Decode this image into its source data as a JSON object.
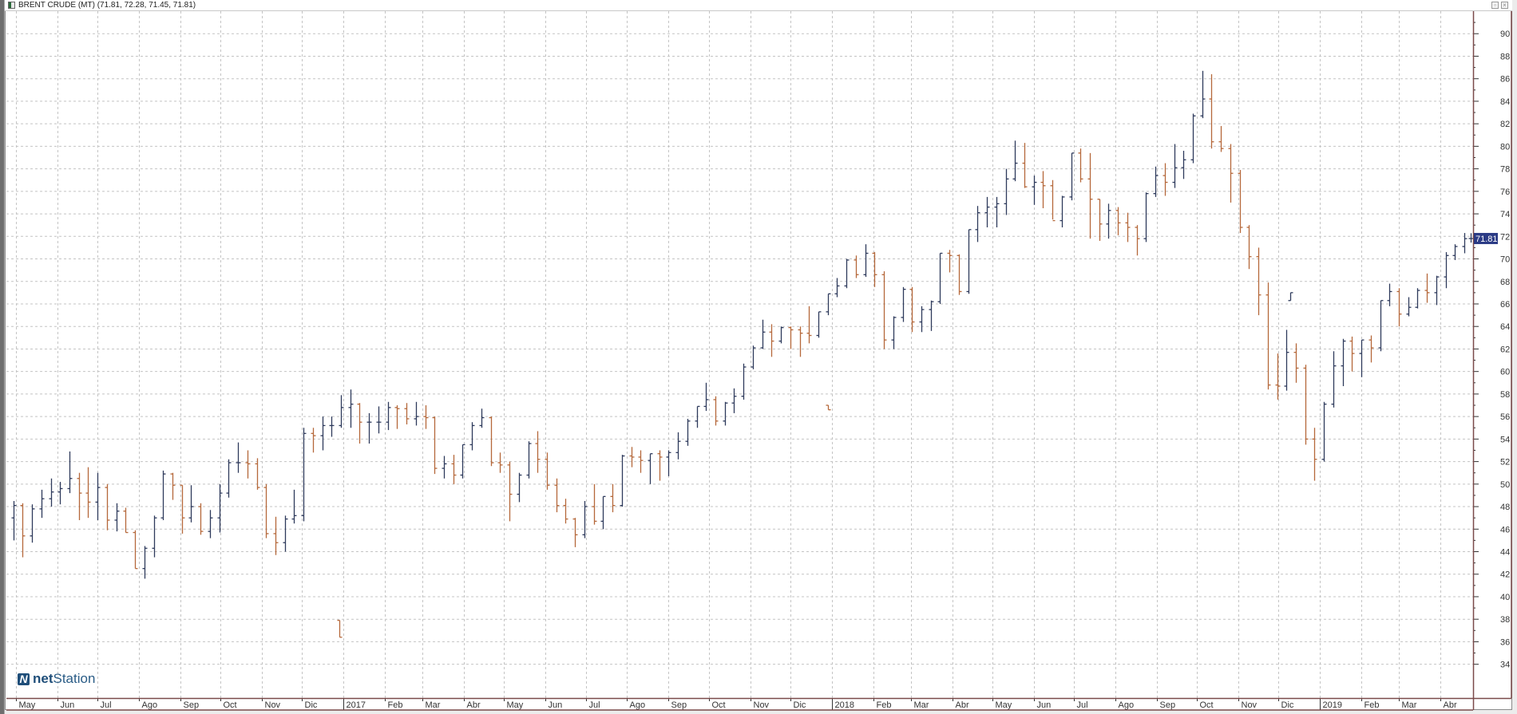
{
  "window": {
    "title": "BRENT CRUDE (MT) (71.81, 72.28, 71.45, 71.81)",
    "buttons": [
      "restore",
      "close"
    ]
  },
  "logo": {
    "brand_bold": "net",
    "brand_light": "Station"
  },
  "colors": {
    "up_bar": "#2e3a5c",
    "down_bar": "#b5683a",
    "last_price_box": "#2b3b85",
    "axis_border": "#7a4a4a",
    "grid": "#c4c4c4",
    "logo": "#1f4e79"
  },
  "chart_data": {
    "type": "ohlc",
    "title": "BRENT CRUDE (MT)",
    "last_price": "71.81",
    "ylim": [
      31,
      92
    ],
    "y_ticks": [
      34,
      36,
      38,
      40,
      42,
      44,
      46,
      48,
      50,
      52,
      54,
      56,
      58,
      60,
      62,
      64,
      66,
      68,
      70,
      72,
      74,
      76,
      78,
      80,
      82,
      84,
      86,
      88,
      90
    ],
    "grid": true,
    "x_ticks": [
      {
        "date": "2016-05-01",
        "label": "May"
      },
      {
        "date": "2016-06-01",
        "label": "Jun"
      },
      {
        "date": "2016-07-01",
        "label": "Jul"
      },
      {
        "date": "2016-08-01",
        "label": "Ago"
      },
      {
        "date": "2016-09-01",
        "label": "Sep"
      },
      {
        "date": "2016-10-01",
        "label": "Oct"
      },
      {
        "date": "2016-11-01",
        "label": "Nov"
      },
      {
        "date": "2016-12-01",
        "label": "Dic"
      },
      {
        "date": "2017-01-01",
        "label": "2017"
      },
      {
        "date": "2017-02-01",
        "label": "Feb"
      },
      {
        "date": "2017-03-01",
        "label": "Mar"
      },
      {
        "date": "2017-04-01",
        "label": "Abr"
      },
      {
        "date": "2017-05-01",
        "label": "May"
      },
      {
        "date": "2017-06-01",
        "label": "Jun"
      },
      {
        "date": "2017-07-01",
        "label": "Jul"
      },
      {
        "date": "2017-08-01",
        "label": "Ago"
      },
      {
        "date": "2017-09-01",
        "label": "Sep"
      },
      {
        "date": "2017-10-01",
        "label": "Oct"
      },
      {
        "date": "2017-11-01",
        "label": "Nov"
      },
      {
        "date": "2017-12-01",
        "label": "Dic"
      },
      {
        "date": "2018-01-01",
        "label": "2018"
      },
      {
        "date": "2018-02-01",
        "label": "Feb"
      },
      {
        "date": "2018-03-01",
        "label": "Mar"
      },
      {
        "date": "2018-04-01",
        "label": "Abr"
      },
      {
        "date": "2018-05-01",
        "label": "May"
      },
      {
        "date": "2018-06-01",
        "label": "Jun"
      },
      {
        "date": "2018-07-01",
        "label": "Jul"
      },
      {
        "date": "2018-08-01",
        "label": "Ago"
      },
      {
        "date": "2018-09-01",
        "label": "Sep"
      },
      {
        "date": "2018-10-01",
        "label": "Oct"
      },
      {
        "date": "2018-11-01",
        "label": "Nov"
      },
      {
        "date": "2018-12-01",
        "label": "Dic"
      },
      {
        "date": "2019-01-01",
        "label": "2019"
      },
      {
        "date": "2019-02-01",
        "label": "Feb"
      },
      {
        "date": "2019-03-01",
        "label": "Mar"
      },
      {
        "date": "2019-04-01",
        "label": "Abr"
      }
    ],
    "columns": [
      "date",
      "open",
      "high",
      "low",
      "close"
    ],
    "bars": [
      [
        "2016-04-29",
        47.0,
        48.5,
        45.0,
        48.1
      ],
      [
        "2016-05-06",
        48.1,
        48.3,
        43.5,
        45.4
      ],
      [
        "2016-05-13",
        45.4,
        48.2,
        44.8,
        47.8
      ],
      [
        "2016-05-20",
        47.8,
        49.5,
        47.0,
        48.7
      ],
      [
        "2016-05-27",
        48.7,
        50.5,
        48.0,
        49.3
      ],
      [
        "2016-06-03",
        49.3,
        50.2,
        48.2,
        49.6
      ],
      [
        "2016-06-10",
        49.6,
        52.9,
        49.2,
        50.5
      ],
      [
        "2016-06-17",
        50.5,
        51.0,
        46.8,
        49.2
      ],
      [
        "2016-06-24",
        49.2,
        51.5,
        47.0,
        48.4
      ],
      [
        "2016-07-01",
        48.4,
        51.0,
        46.8,
        49.7
      ],
      [
        "2016-07-08",
        49.7,
        50.0,
        45.9,
        46.8
      ],
      [
        "2016-07-15",
        46.8,
        48.3,
        45.8,
        47.6
      ],
      [
        "2016-07-22",
        47.6,
        47.9,
        45.7,
        45.7
      ],
      [
        "2016-07-29",
        45.7,
        45.9,
        42.5,
        42.5
      ],
      [
        "2016-08-05",
        42.5,
        44.5,
        41.6,
        44.3
      ],
      [
        "2016-08-12",
        44.3,
        47.2,
        43.5,
        47.0
      ],
      [
        "2016-08-19",
        47.0,
        51.2,
        46.8,
        50.9
      ],
      [
        "2016-08-26",
        50.9,
        51.0,
        48.6,
        49.9
      ],
      [
        "2016-09-02",
        49.9,
        49.9,
        45.6,
        47.0
      ],
      [
        "2016-09-09",
        47.0,
        49.9,
        46.6,
        48.0
      ],
      [
        "2016-09-16",
        48.0,
        48.3,
        45.5,
        45.8
      ],
      [
        "2016-09-23",
        45.8,
        47.7,
        45.2,
        47.0
      ],
      [
        "2016-09-30",
        47.0,
        50.0,
        45.7,
        49.2
      ],
      [
        "2016-10-07",
        49.2,
        52.2,
        48.8,
        51.9
      ],
      [
        "2016-10-14",
        51.9,
        53.7,
        51.0,
        51.9
      ],
      [
        "2016-10-21",
        51.9,
        53.0,
        50.5,
        51.8
      ],
      [
        "2016-10-28",
        51.8,
        52.3,
        49.5,
        49.7
      ],
      [
        "2016-11-04",
        49.7,
        50.0,
        45.2,
        45.6
      ],
      [
        "2016-11-11",
        45.6,
        47.1,
        43.7,
        44.8
      ],
      [
        "2016-11-18",
        44.8,
        47.2,
        44.0,
        46.9
      ],
      [
        "2016-11-25",
        46.9,
        49.5,
        46.5,
        47.2
      ],
      [
        "2016-12-02",
        47.2,
        55.0,
        46.7,
        54.5
      ],
      [
        "2016-12-09",
        54.5,
        55.0,
        52.8,
        54.3
      ],
      [
        "2016-12-16",
        54.3,
        56.0,
        53.0,
        55.2
      ],
      [
        "2016-12-23",
        55.2,
        56.0,
        54.2,
        55.2
      ],
      [
        "2016-12-30",
        55.2,
        57.9,
        55.0,
        56.8
      ],
      [
        "2017-01-06",
        56.8,
        58.4,
        55.0,
        57.1
      ],
      [
        "2017-01-13",
        57.1,
        57.2,
        53.6,
        55.5
      ],
      [
        "2017-01-20",
        55.5,
        56.3,
        53.6,
        55.5
      ],
      [
        "2017-01-27",
        55.5,
        56.9,
        54.5,
        55.5
      ],
      [
        "2017-02-03",
        55.5,
        57.3,
        54.8,
        56.8
      ],
      [
        "2017-02-10",
        56.8,
        57.0,
        54.9,
        56.7
      ],
      [
        "2017-02-17",
        56.7,
        57.2,
        55.3,
        55.8
      ],
      [
        "2017-02-24",
        55.8,
        57.3,
        55.2,
        56.0
      ],
      [
        "2017-03-03",
        56.0,
        57.0,
        54.9,
        55.9
      ],
      [
        "2017-03-10",
        55.9,
        56.0,
        50.9,
        51.4
      ],
      [
        "2017-03-17",
        51.4,
        52.5,
        50.5,
        51.8
      ],
      [
        "2017-03-24",
        51.8,
        52.6,
        50.0,
        50.8
      ],
      [
        "2017-03-31",
        50.8,
        53.5,
        50.5,
        53.5
      ],
      [
        "2017-04-07",
        53.5,
        55.5,
        53.0,
        55.2
      ],
      [
        "2017-04-14",
        55.2,
        56.7,
        55.0,
        55.9
      ],
      [
        "2017-04-21",
        55.9,
        56.0,
        51.6,
        51.9
      ],
      [
        "2017-04-28",
        51.9,
        52.8,
        51.0,
        51.7
      ],
      [
        "2017-05-05",
        51.7,
        52.0,
        46.7,
        49.1
      ],
      [
        "2017-05-12",
        49.1,
        51.0,
        48.4,
        50.8
      ],
      [
        "2017-05-19",
        50.8,
        53.8,
        50.5,
        53.6
      ],
      [
        "2017-05-26",
        53.6,
        54.7,
        51.0,
        52.2
      ],
      [
        "2017-06-02",
        52.2,
        52.8,
        49.5,
        49.9
      ],
      [
        "2017-06-09",
        49.9,
        50.5,
        47.5,
        48.1
      ],
      [
        "2017-06-16",
        48.1,
        48.7,
        46.5,
        46.9
      ],
      [
        "2017-06-23",
        46.9,
        47.0,
        44.4,
        45.5
      ],
      [
        "2017-06-30",
        45.5,
        48.5,
        45.2,
        48.0
      ],
      [
        "2017-07-07",
        48.0,
        50.0,
        46.4,
        46.7
      ],
      [
        "2017-07-14",
        46.7,
        48.9,
        46.0,
        48.9
      ],
      [
        "2017-07-21",
        48.9,
        50.0,
        47.5,
        48.1
      ],
      [
        "2017-07-28",
        48.1,
        52.6,
        48.0,
        52.5
      ],
      [
        "2017-08-04",
        52.5,
        53.3,
        51.5,
        52.4
      ],
      [
        "2017-08-11",
        52.4,
        53.0,
        51.0,
        52.1
      ],
      [
        "2017-08-18",
        52.1,
        52.7,
        50.0,
        52.7
      ],
      [
        "2017-08-25",
        52.7,
        53.0,
        50.3,
        52.4
      ],
      [
        "2017-09-01",
        52.4,
        53.0,
        50.7,
        52.8
      ],
      [
        "2017-09-08",
        52.8,
        54.6,
        52.2,
        53.8
      ],
      [
        "2017-09-15",
        53.8,
        55.8,
        53.4,
        55.6
      ],
      [
        "2017-09-22",
        55.6,
        56.9,
        55.0,
        56.9
      ],
      [
        "2017-09-29",
        56.9,
        59.0,
        56.5,
        57.5
      ],
      [
        "2017-10-06",
        57.5,
        57.8,
        55.2,
        55.6
      ],
      [
        "2017-10-13",
        55.6,
        57.3,
        55.2,
        57.2
      ],
      [
        "2017-10-20",
        57.2,
        58.5,
        56.3,
        57.8
      ],
      [
        "2017-10-27",
        57.8,
        60.7,
        57.5,
        60.4
      ],
      [
        "2017-11-03",
        60.4,
        62.3,
        60.2,
        62.1
      ],
      [
        "2017-11-10",
        62.1,
        64.6,
        62.0,
        63.5
      ],
      [
        "2017-11-17",
        63.5,
        64.2,
        61.3,
        62.7
      ],
      [
        "2017-11-24",
        62.7,
        64.0,
        62.5,
        63.9
      ],
      [
        "2017-12-01",
        63.9,
        64.0,
        62.0,
        63.7
      ],
      [
        "2017-12-08",
        63.7,
        64.0,
        61.3,
        63.4
      ],
      [
        "2017-12-15",
        63.4,
        65.8,
        62.5,
        63.2
      ],
      [
        "2017-12-22",
        63.2,
        65.3,
        63.0,
        65.3
      ],
      [
        "2017-12-29",
        65.3,
        66.9,
        65.0,
        66.9
      ],
      [
        "2018-01-05",
        66.9,
        68.3,
        66.6,
        67.6
      ],
      [
        "2018-01-12",
        67.6,
        70.0,
        67.4,
        69.9
      ],
      [
        "2018-01-19",
        69.9,
        70.3,
        68.3,
        68.6
      ],
      [
        "2018-01-26",
        68.6,
        71.3,
        68.4,
        70.5
      ],
      [
        "2018-02-02",
        70.5,
        70.6,
        67.5,
        68.6
      ],
      [
        "2018-02-09",
        68.6,
        68.9,
        62.0,
        62.8
      ],
      [
        "2018-02-16",
        62.8,
        64.9,
        62.0,
        64.8
      ],
      [
        "2018-02-23",
        64.8,
        67.5,
        64.4,
        67.3
      ],
      [
        "2018-03-02",
        67.3,
        67.5,
        63.5,
        64.4
      ],
      [
        "2018-03-09",
        64.4,
        65.8,
        63.5,
        65.5
      ],
      [
        "2018-03-16",
        65.5,
        66.3,
        63.6,
        66.2
      ],
      [
        "2018-03-23",
        66.2,
        70.5,
        66.0,
        70.5
      ],
      [
        "2018-03-30",
        70.5,
        70.8,
        68.8,
        70.3
      ],
      [
        "2018-04-06",
        70.3,
        70.4,
        66.8,
        67.1
      ],
      [
        "2018-04-13",
        67.1,
        72.6,
        66.9,
        72.6
      ],
      [
        "2018-04-20",
        72.6,
        74.7,
        71.5,
        74.1
      ],
      [
        "2018-04-27",
        74.1,
        75.5,
        72.8,
        74.6
      ],
      [
        "2018-05-04",
        74.6,
        75.5,
        72.8,
        74.9
      ],
      [
        "2018-05-11",
        74.9,
        78.0,
        73.9,
        77.1
      ],
      [
        "2018-05-18",
        77.1,
        80.5,
        76.9,
        78.5
      ],
      [
        "2018-05-25",
        78.5,
        80.3,
        76.3,
        76.4
      ],
      [
        "2018-06-01",
        76.4,
        77.4,
        74.8,
        76.8
      ],
      [
        "2018-06-08",
        76.8,
        77.8,
        74.5,
        76.5
      ],
      [
        "2018-06-15",
        76.5,
        77.0,
        73.5,
        73.4
      ],
      [
        "2018-06-22",
        73.4,
        75.6,
        72.8,
        75.5
      ],
      [
        "2018-06-29",
        75.5,
        79.4,
        75.2,
        79.4
      ],
      [
        "2018-07-06",
        79.4,
        79.8,
        76.8,
        77.1
      ],
      [
        "2018-07-13",
        77.1,
        79.4,
        71.8,
        75.3
      ],
      [
        "2018-07-20",
        75.3,
        75.3,
        71.6,
        73.1
      ],
      [
        "2018-07-27",
        73.1,
        74.9,
        71.8,
        74.3
      ],
      [
        "2018-08-03",
        74.3,
        74.6,
        72.1,
        73.2
      ],
      [
        "2018-08-10",
        73.2,
        74.1,
        71.5,
        72.8
      ],
      [
        "2018-08-17",
        72.8,
        73.0,
        70.3,
        71.8
      ],
      [
        "2018-08-24",
        71.8,
        75.9,
        71.5,
        75.8
      ],
      [
        "2018-08-31",
        75.8,
        78.2,
        75.5,
        77.4
      ],
      [
        "2018-09-07",
        77.4,
        78.5,
        75.6,
        76.8
      ],
      [
        "2018-09-14",
        76.8,
        80.2,
        76.3,
        78.1
      ],
      [
        "2018-09-21",
        78.1,
        79.6,
        77.1,
        78.8
      ],
      [
        "2018-09-28",
        78.8,
        82.9,
        78.5,
        82.7
      ],
      [
        "2018-10-05",
        82.7,
        86.7,
        82.5,
        84.2
      ],
      [
        "2018-10-12",
        84.2,
        86.4,
        79.8,
        80.4
      ],
      [
        "2018-10-19",
        80.4,
        81.8,
        79.5,
        79.8
      ],
      [
        "2018-10-26",
        79.8,
        80.2,
        75.0,
        77.6
      ],
      [
        "2018-11-02",
        77.6,
        77.9,
        72.3,
        72.8
      ],
      [
        "2018-11-09",
        72.8,
        73.0,
        69.1,
        70.2
      ],
      [
        "2018-11-16",
        70.2,
        71.0,
        65.0,
        66.8
      ],
      [
        "2018-11-23",
        66.8,
        67.9,
        58.4,
        58.8
      ],
      [
        "2018-11-30",
        58.8,
        61.6,
        57.5,
        58.7
      ],
      [
        "2018-12-07",
        58.7,
        63.7,
        58.3,
        61.7
      ],
      [
        "2018-12-14",
        61.7,
        62.5,
        59.0,
        60.3
      ],
      [
        "2018-12-21",
        60.3,
        60.6,
        53.5,
        54.0
      ],
      [
        "2018-12-28",
        54.0,
        55.0,
        50.3,
        52.2
      ],
      [
        "2019-01-04",
        52.2,
        57.3,
        52.0,
        57.1
      ],
      [
        "2019-01-11",
        57.1,
        61.8,
        56.8,
        60.5
      ],
      [
        "2019-01-18",
        60.5,
        62.9,
        58.7,
        62.7
      ],
      [
        "2019-01-25",
        62.7,
        63.1,
        60.0,
        61.6
      ],
      [
        "2019-02-01",
        61.6,
        62.8,
        59.5,
        62.8
      ],
      [
        "2019-02-08",
        62.8,
        63.2,
        60.8,
        62.1
      ],
      [
        "2019-02-15",
        62.1,
        66.3,
        61.8,
        66.3
      ],
      [
        "2019-02-22",
        66.3,
        67.8,
        65.8,
        67.1
      ],
      [
        "2019-03-01",
        67.1,
        67.4,
        64.0,
        65.1
      ],
      [
        "2019-03-08",
        65.1,
        66.6,
        64.9,
        65.7
      ],
      [
        "2019-03-15",
        65.7,
        67.4,
        65.6,
        67.2
      ],
      [
        "2019-03-22",
        67.2,
        68.7,
        66.1,
        67.0
      ],
      [
        "2019-03-29",
        67.0,
        68.5,
        65.9,
        68.4
      ],
      [
        "2019-04-05",
        68.4,
        70.6,
        67.4,
        70.3
      ],
      [
        "2019-04-12",
        70.3,
        71.3,
        69.9,
        71.1
      ],
      [
        "2019-04-19",
        71.1,
        72.3,
        70.5,
        71.8
      ],
      [
        "2019-04-24",
        71.81,
        72.28,
        71.45,
        71.81
      ]
    ],
    "isolated_bars": [
      [
        "2016-12-29",
        37.9,
        37.9,
        36.4,
        36.4
      ],
      [
        "2017-12-29",
        57.0,
        57.0,
        56.6,
        56.6
      ],
      [
        "2018-12-10",
        66.3,
        67.0,
        66.3,
        67.0
      ]
    ]
  }
}
